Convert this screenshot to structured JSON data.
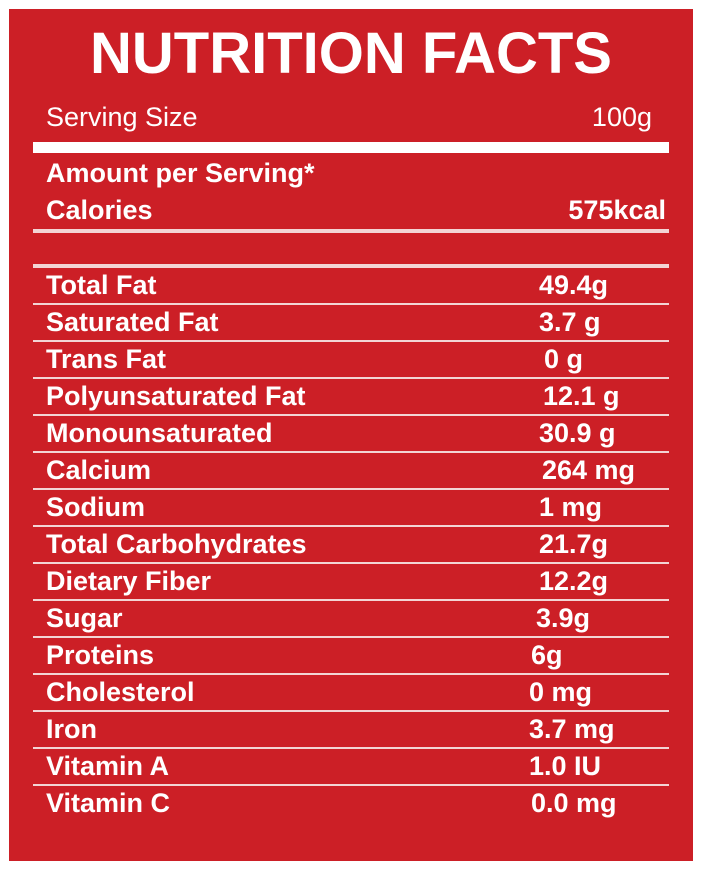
{
  "title": "NUTRITION FACTS",
  "serving": {
    "label": "Serving Size",
    "value": "100g"
  },
  "amount_label": "Amount per Serving*",
  "calories": {
    "label": "Calories",
    "value": "575kcal"
  },
  "nutrients": [
    {
      "name": "Total Fat",
      "value": "49.4g"
    },
    {
      "name": "Saturated Fat",
      "value": "3.7 g"
    },
    {
      "name": "Trans Fat",
      "value": "0 g"
    },
    {
      "name": "Polyunsaturated Fat",
      "value": "12.1 g"
    },
    {
      "name": "Monounsaturated",
      "value": "30.9 g"
    },
    {
      "name": "Calcium",
      "value": "264 mg"
    },
    {
      "name": "Sodium",
      "value": "1 mg"
    },
    {
      "name": "Total Carbohydrates",
      "value": "21.7g"
    },
    {
      "name": "Dietary Fiber",
      "value": "12.2g"
    },
    {
      "name": "Sugar",
      "value": "3.9g"
    },
    {
      "name": "Proteins",
      "value": "6g"
    },
    {
      "name": "Cholesterol",
      "value": "0 mg"
    },
    {
      "name": "Iron",
      "value": "3.7 mg"
    },
    {
      "name": "Vitamin A",
      "value": "1.0 IU"
    },
    {
      "name": "Vitamin C",
      "value": "0.0 mg"
    }
  ],
  "colors": {
    "background": "#cc1f26",
    "text": "#ffffff"
  }
}
